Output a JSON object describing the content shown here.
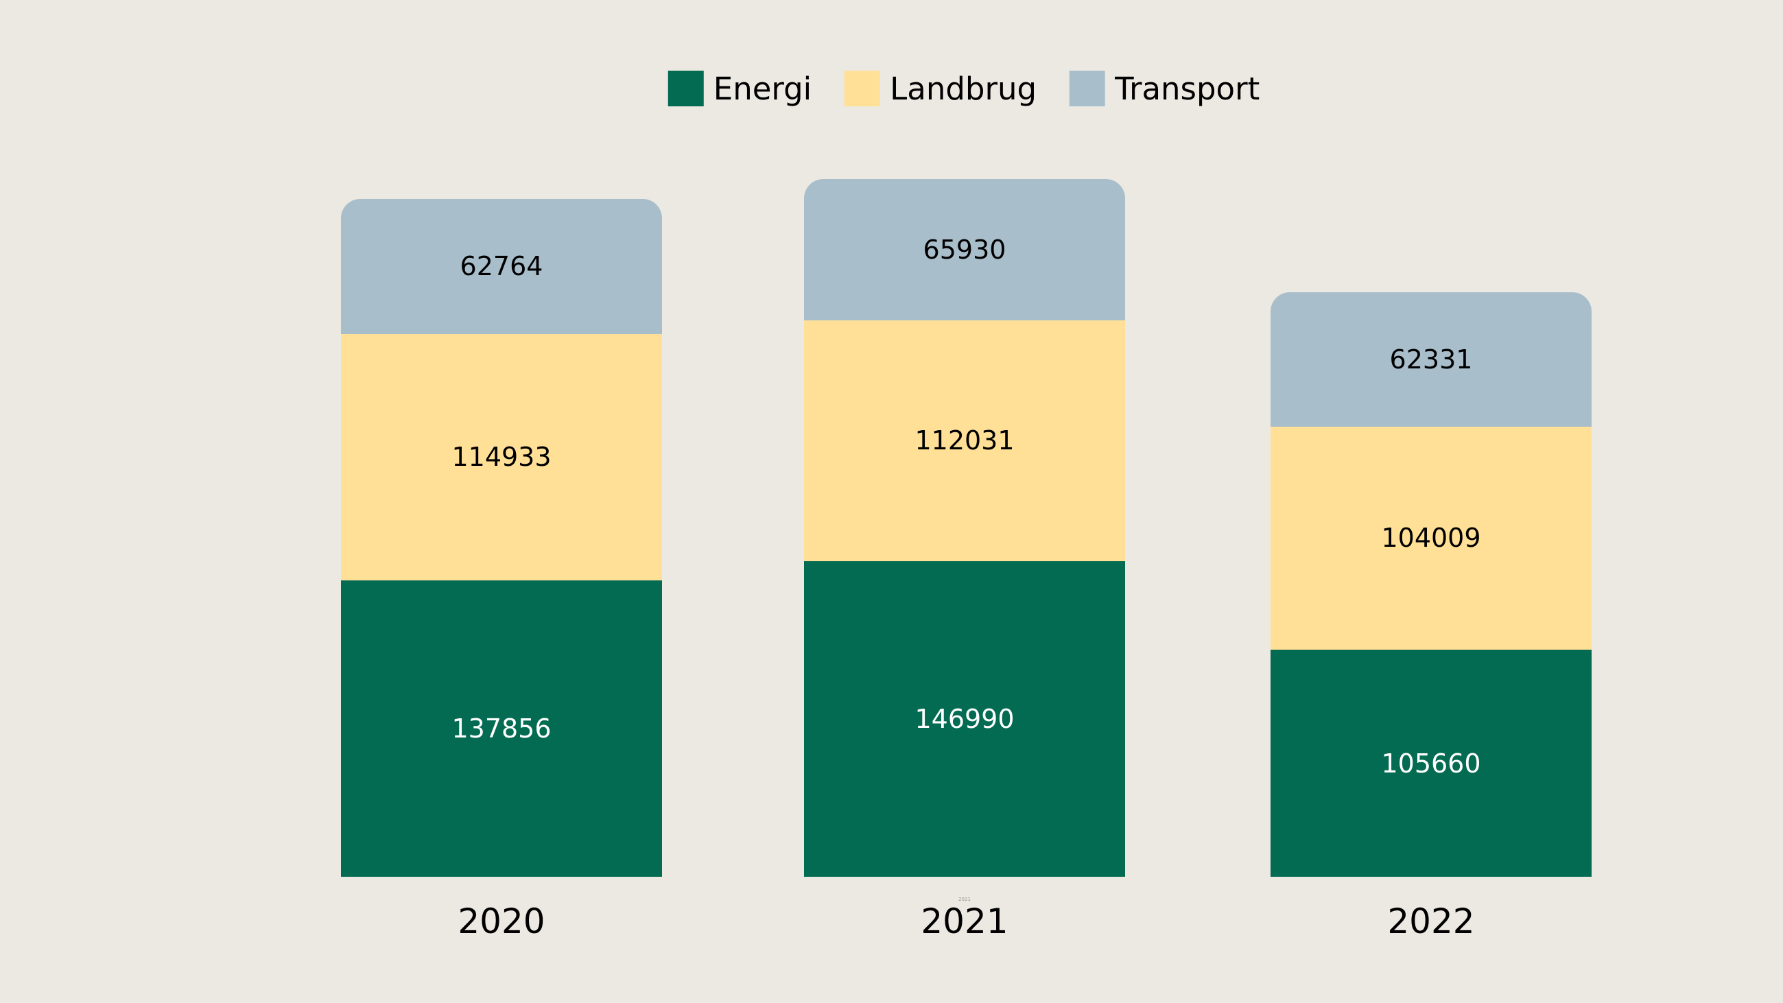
{
  "background_color": "#ECE9E2",
  "legend": {
    "position": "top-center"
  },
  "chart_data": {
    "type": "bar",
    "stacked": true,
    "orientation": "vertical",
    "categories": [
      "2020",
      "2021",
      "2022"
    ],
    "series": [
      {
        "name": "Energi",
        "color": "#046B53",
        "label_color": "#FFFFFF",
        "values": [
          137856,
          146990,
          105660
        ]
      },
      {
        "name": "Landbrug",
        "color": "#FFE096",
        "label_color": "#000000",
        "values": [
          114933,
          112031,
          104009
        ]
      },
      {
        "name": "Transport",
        "color": "#A9BECB",
        "label_color": "#000000",
        "values": [
          62764,
          65930,
          62331
        ]
      }
    ],
    "totals": [
      315553,
      324951,
      272000
    ],
    "value_labels": "centered inside each segment",
    "title": "",
    "xlabel": "",
    "ylabel": "",
    "axes_visible": false,
    "grid": false,
    "legend_entries": [
      "Energi",
      "Landbrug",
      "Transport"
    ]
  },
  "artifact": {
    "tiny_label_under_2021": "2021"
  }
}
